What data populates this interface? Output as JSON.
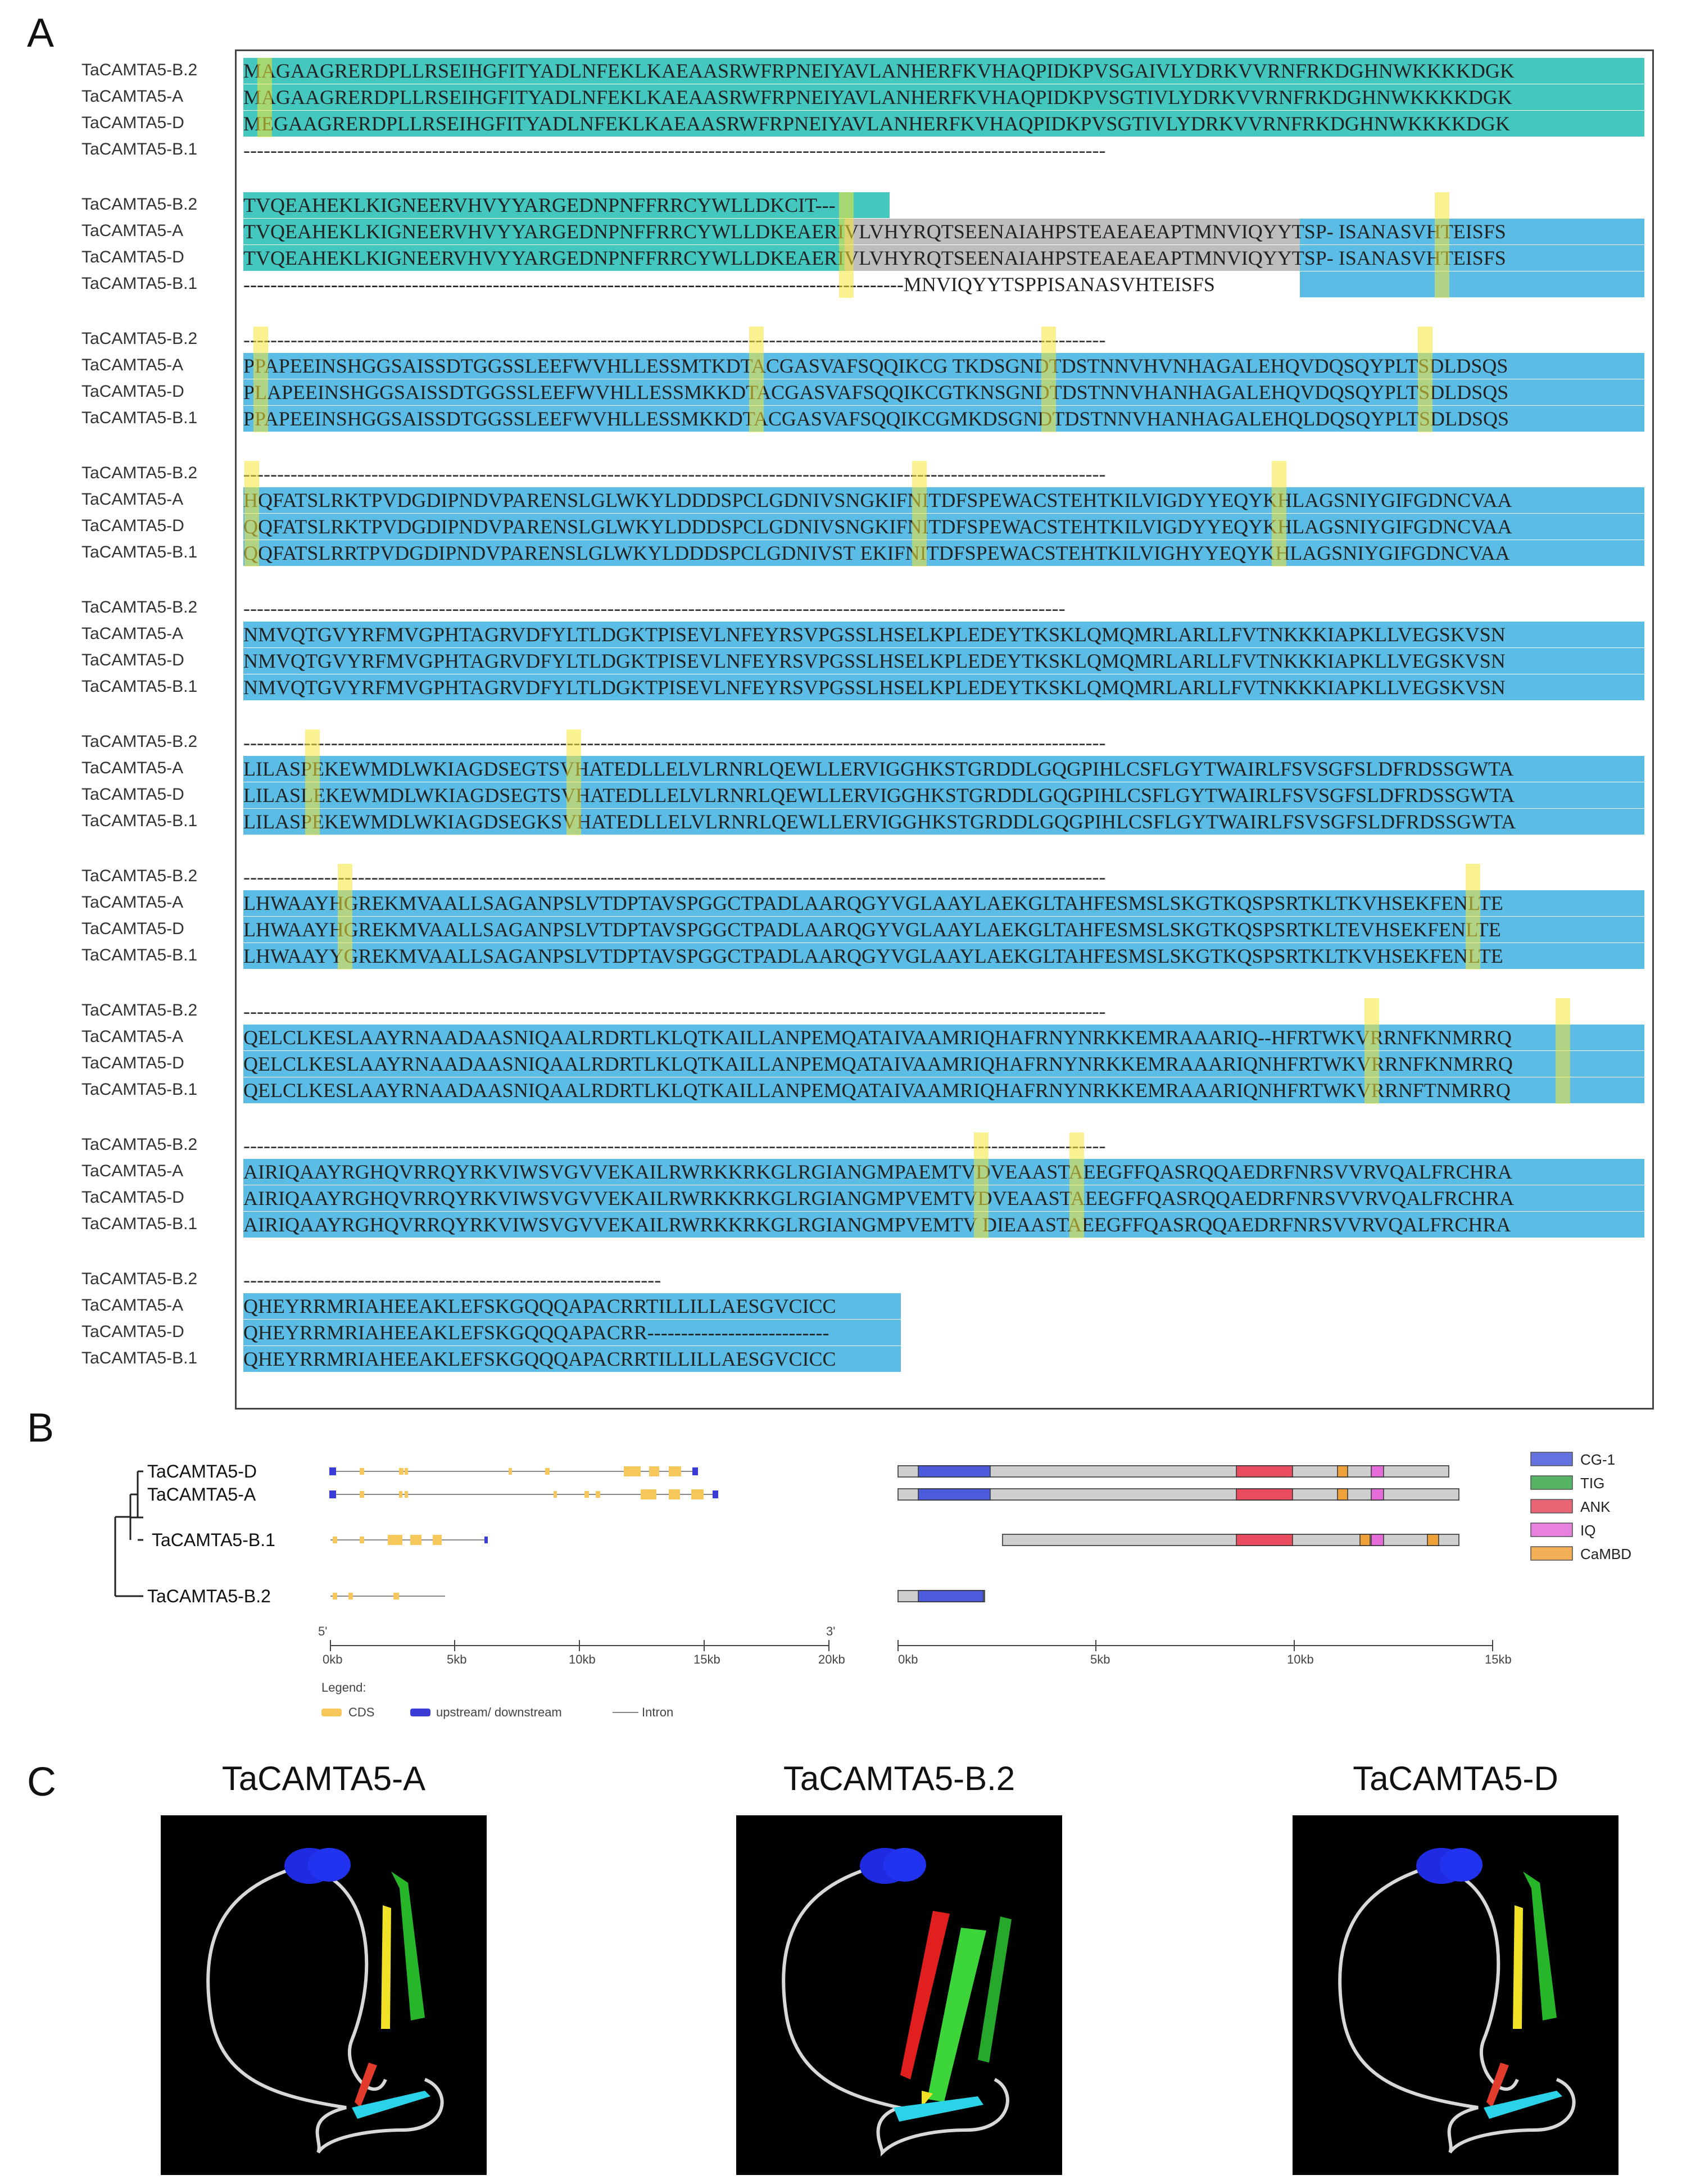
{
  "panel_labels": {
    "a": "A",
    "b": "B",
    "c": "C"
  },
  "alignment": {
    "rows": [
      {
        "names": [
          "TaCAMTA5-B.2",
          "TaCAMTA5-A",
          "TaCAMTA5-D",
          "TaCAMTA5-B.1"
        ],
        "seqs": [
          "MAGAAGRERDPLLRSEIHGFITYADLNFEKLKAEAASRWFRPNEIYAVLANHERFKVHAQPIDKPVSGAIVLYDRKVVRNFRKDGHNWKKKKDGK",
          "MAGAAGRERDPLLRSEIHGFITYADLNFEKLKAEAASRWFRPNEIYAVLANHERFKVHAQPIDKPVSGTIVLYDRKVVRNFRKDGHNWKKKKDGK",
          "MEGAAGRERDPLLRSEIHGFITYADLNFEKLKAEAASRWFRPNEIYAVLANHERFKVHAQPIDKPVSGTIVLYDRKVVRNFRKDGHNWKKKKDGK",
          "--------------------------------------------------------------------------------------------------------------------------------"
        ]
      },
      {
        "names": [
          "TaCAMTA5-B.2",
          "TaCAMTA5-A",
          "TaCAMTA5-D",
          "TaCAMTA5-B.1"
        ],
        "seqs": [
          "TVQEAHEKLKIGNEERVHVYYARGEDNPNFFRRCYWLLDKCIT---",
          "TVQEAHEKLKIGNEERVHVYYARGEDNPNFFRRCYWLLDKEAERIVLVHYRQTSEENAIAHPSTEAEAEAPTMNVIQYYTSP- ISANASVHTEISFS",
          "TVQEAHEKLKIGNEERVHVYYARGEDNPNFFRRCYWLLDKEAERIVLVHYRQTSEENAIAHPSTEAEAEAPTMNVIQYYTSP- ISANASVHTEISFS",
          "--------------------------------------------------------------------------------------------------MNVIQYYTSPPISANASVHTEISFS"
        ]
      },
      {
        "names": [
          "TaCAMTA5-B.2",
          "TaCAMTA5-A",
          "TaCAMTA5-D",
          "TaCAMTA5-B.1"
        ],
        "seqs": [
          "--------------------------------------------------------------------------------------------------------------------------------",
          "PPAPEEINSHGGSAISSDTGGSSLEEFWVHLLESSMTKDTACGASVAFSQQIKCG TKDSGNDTDSTNNVHVNHAGALEHQVDQSQYPLTSDLDSQS",
          "PLAPEEINSHGGSAISSDTGGSSLEEFWVHLLESSMKKDTACGASVAFSQQIKCGTKNSGNDTDSTNNVHANHAGALEHQVDQSQYPLTSDLDSQS",
          "PPAPEEINSHGGSAISSDTGGSSLEEFWVHLLESSMKKDTACGASVAFSQQIKCGMKDSGNDTDSTNNVHANHAGALEHQLDQSQYPLTSDLDSQS"
        ]
      },
      {
        "names": [
          "TaCAMTA5-B.2",
          "TaCAMTA5-A",
          "TaCAMTA5-D",
          "TaCAMTA5-B.1"
        ],
        "seqs": [
          "--------------------------------------------------------------------------------------------------------------------------------",
          "HQFATSLRKTPVDGDIPNDVPARENSLGLWKYLDDDSPCLGDNIVSNGKIFNITDFSPEWACSTEHTKILVIGDYYEQYKHLAGSNIYGIFGDNCVAA",
          "QQFATSLRKTPVDGDIPNDVPARENSLGLWKYLDDDSPCLGDNIVSNGKIFNITDFSPEWACSTEHTKILVIGDYYEQYKHLAGSNIYGIFGDNCVAA",
          "QQFATSLRRTPVDGDIPNDVPARENSLGLWKYLDDDSPCLGDNIVST EKIFNITDFSPEWACSTEHTKILVIGHYYEQYKHLAGSNIYGIFGDNCVAA"
        ]
      },
      {
        "names": [
          "TaCAMTA5-B.2",
          "TaCAMTA5-A",
          "TaCAMTA5-D",
          "TaCAMTA5-B.1"
        ],
        "seqs": [
          "--------------------------------------------------------------------------------------------------------------------------",
          "NMVQTGVYRFMVGPHTAGRVDFYLTLDGKTPISEVLNFEYRSVPGSSLHSELKPLEDEYTKSKLQMQMRLARLLFVTNKKKIAPKLLVEGSKVSN",
          "NMVQTGVYRFMVGPHTAGRVDFYLTLDGKTPISEVLNFEYRSVPGSSLHSELKPLEDEYTKSKLQMQMRLARLLFVTNKKKIAPKLLVEGSKVSN",
          "NMVQTGVYRFMVGPHTAGRVDFYLTLDGKTPISEVLNFEYRSVPGSSLHSELKPLEDEYTKSKLQMQMRLARLLFVTNKKKIAPKLLVEGSKVSN"
        ]
      },
      {
        "names": [
          "TaCAMTA5-B.2",
          "TaCAMTA5-A",
          "TaCAMTA5-D",
          "TaCAMTA5-B.1"
        ],
        "seqs": [
          "--------------------------------------------------------------------------------------------------------------------------------",
          "LILASPEKEWMDLWKIAGDSEGTSVHATEDLLELVLRNRLQEWLLERVIGGHKSTGRDDLGQGPIHLCSFLGYTWAIRLFSVSGFSLDFRDSSGWTA",
          "LILASLEKEWMDLWKIAGDSEGTSVHATEDLLELVLRNRLQEWLLERVIGGHKSTGRDDLGQGPIHLCSFLGYTWAIRLFSVSGFSLDFRDSSGWTA",
          "LILASPEKEWMDLWKIAGDSEGKSVHATEDLLELVLRNRLQEWLLERVIGGHKSTGRDDLGQGPIHLCSFLGYTWAIRLFSVSGFSLDFRDSSGWTA"
        ]
      },
      {
        "names": [
          "TaCAMTA5-B.2",
          "TaCAMTA5-A",
          "TaCAMTA5-D",
          "TaCAMTA5-B.1"
        ],
        "seqs": [
          "--------------------------------------------------------------------------------------------------------------------------------",
          "LHWAAYHGREKMVAALLSAGANPSLVTDPTAVSPGGCTPADLAARQGYVGLAAYLAEKGLTAHFESMSLSKGTKQSPSRTKLTKVHSEKFENLTE",
          "LHWAAYHGREKMVAALLSAGANPSLVTDPTAVSPGGCTPADLAARQGYVGLAAYLAEKGLTAHFESMSLSKGTKQSPSRTKLTEVHSEKFENLTE",
          "LHWAAYYGREKMVAALLSAGANPSLVTDPTAVSPGGCTPADLAARQGYVGLAAYLAEKGLTAHFESMSLSKGTKQSPSRTKLTKVHSEKFENLTE"
        ]
      },
      {
        "names": [
          "TaCAMTA5-B.2",
          "TaCAMTA5-A",
          "TaCAMTA5-D",
          "TaCAMTA5-B.1"
        ],
        "seqs": [
          "--------------------------------------------------------------------------------------------------------------------------------",
          "QELCLKESLAAYRNAADAASNIQAALRDRTLKLQTKAILLANPEMQATAIVAAMRIQHAFRNYNRKKEMRAAARIQ--HFRTWKVRRNFKNMRRQ",
          "QELCLKESLAAYRNAADAASNIQAALRDRTLKLQTKAILLANPEMQATAIVAAMRIQHAFRNYNRKKEMRAAARIQNHFRTWKVRRNFKNMRRQ",
          "QELCLKESLAAYRNAADAASNIQAALRDRTLKLQTKAILLANPEMQATAIVAAMRIQHAFRNYNRKKEMRAAARIQNHFRTWKVRRNFTNMRRQ"
        ]
      },
      {
        "names": [
          "TaCAMTA5-B.2",
          "TaCAMTA5-A",
          "TaCAMTA5-D",
          "TaCAMTA5-B.1"
        ],
        "seqs": [
          "--------------------------------------------------------------------------------------------------------------------------------",
          "AIRIQAAYRGHQVRRQYRKVIWSVGVVEKAILRWRKKRKGLRGIANGMPAEMTVDVEAASTAEEGFFQASRQQAEDRFNRSVVRVQALFRCHRA",
          "AIRIQAAYRGHQVRRQYRKVIWSVGVVEKAILRWRKKRKGLRGIANGMPVEMTVDVEAASTAEEGFFQASRQQAEDRFNRSVVRVQALFRCHRA",
          "AIRIQAAYRGHQVRRQYRKVIWSVGVVEKAILRWRKKRKGLRGIANGMPVEMTV DIEAASTAEEGFFQASRQQAEDRFNRSVVRVQALFRCHRA"
        ]
      },
      {
        "names": [
          "TaCAMTA5-B.2",
          "TaCAMTA5-A",
          "TaCAMTA5-D",
          "TaCAMTA5-B.1"
        ],
        "seqs": [
          "--------------------------------------------------------------",
          "QHEYRRMRIAHEEAKLEFSKGQQQAPACRRTILLILLAESGVCICC",
          "QHEYRRMRIAHEEAKLEFSKGQQQAPACRR---------------------------",
          "QHEYRRMRIAHEEAKLEFSKGQQQAPACRRTILLILLAESGVCICC"
        ]
      }
    ]
  },
  "gene_structure": {
    "genes": [
      "TaCAMTA5-D",
      "TaCAMTA5-A",
      "TaCAMTA5-B.1",
      "TaCAMTA5-B.2"
    ],
    "axis_ticks": [
      "0kb",
      "5kb",
      "10kb",
      "15kb",
      "20kb"
    ],
    "axis_ends": {
      "start": "5'",
      "end": "3'"
    },
    "legend_title": "Legend:",
    "legend_items": [
      {
        "label": "CDS",
        "color": "#f6c75a"
      },
      {
        "label": "upstream/ downstream",
        "color": "#3b3bd6"
      },
      {
        "label": "Intron",
        "color": "#888888"
      }
    ]
  },
  "domains": {
    "axis_ticks": [
      "0kb",
      "5kb",
      "10kb",
      "15kb"
    ],
    "legend": [
      {
        "label": "CG-1",
        "color": "#4b5bdc"
      },
      {
        "label": "TIG",
        "color": "#3aa84a"
      },
      {
        "label": "ANK",
        "color": "#e84c5e"
      },
      {
        "label": "IQ",
        "color": "#e46bd8"
      },
      {
        "label": "CaMBD",
        "color": "#f0a23a"
      }
    ]
  },
  "structures": [
    {
      "title": "TaCAMTA5-A"
    },
    {
      "title": "TaCAMTA5-B.2"
    },
    {
      "title": "TaCAMTA5-D"
    }
  ]
}
